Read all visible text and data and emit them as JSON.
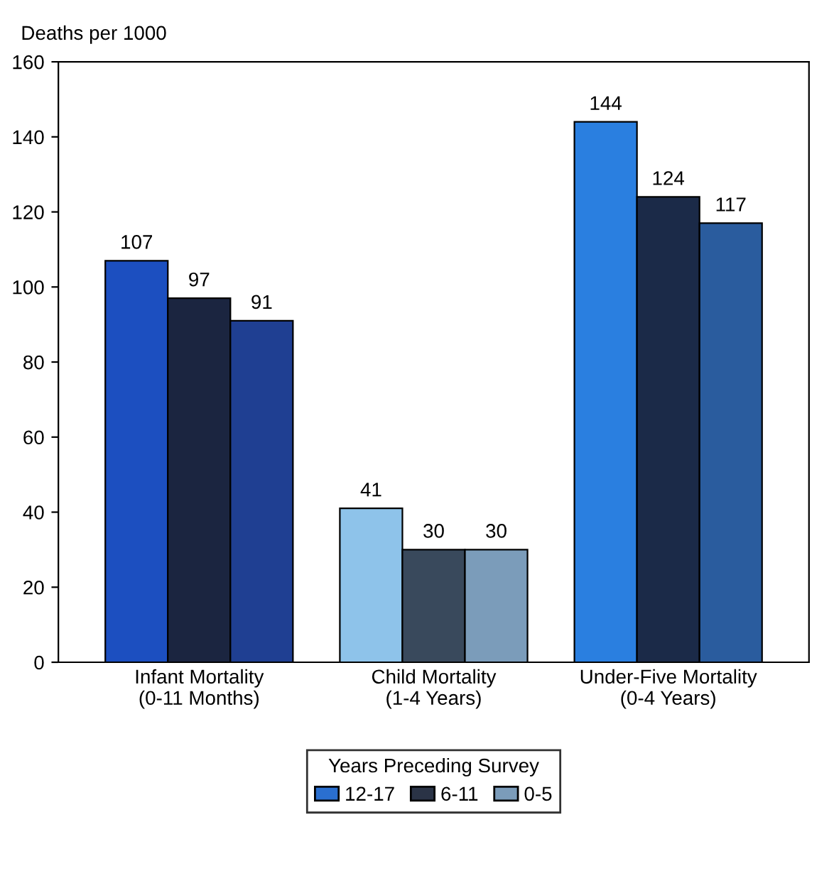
{
  "chart_data": {
    "type": "bar",
    "ylabel": "Deaths per 1000",
    "legend_title": "Years Preceding Survey",
    "legend": "bottom",
    "data_labels": true,
    "grid": false,
    "categories": [
      "Infant Mortality\n(0-11 Months)",
      "Child Mortality\n(1-4 Years)",
      "Under-Five Mortality\n(0-4 Years)"
    ],
    "series": [
      {
        "name": "12-17",
        "color": "#2a6fd0",
        "colors": [
          "#1c4fc0",
          "#8ec3ea",
          "#2a7fe0"
        ],
        "values": [
          107,
          41,
          144
        ]
      },
      {
        "name": "6-11",
        "color": "#2a3346",
        "colors": [
          "#1b2540",
          "#39495c",
          "#1b2a48"
        ],
        "values": [
          97,
          30,
          124
        ]
      },
      {
        "name": "0-5",
        "color": "#7b9cba",
        "colors": [
          "#1f3f92",
          "#7b9cba",
          "#2a5c9e"
        ],
        "values": [
          91,
          30,
          117
        ]
      }
    ],
    "ylim": [
      0,
      160
    ],
    "yticks": [
      0,
      20,
      40,
      60,
      80,
      100,
      120,
      140,
      160
    ]
  }
}
